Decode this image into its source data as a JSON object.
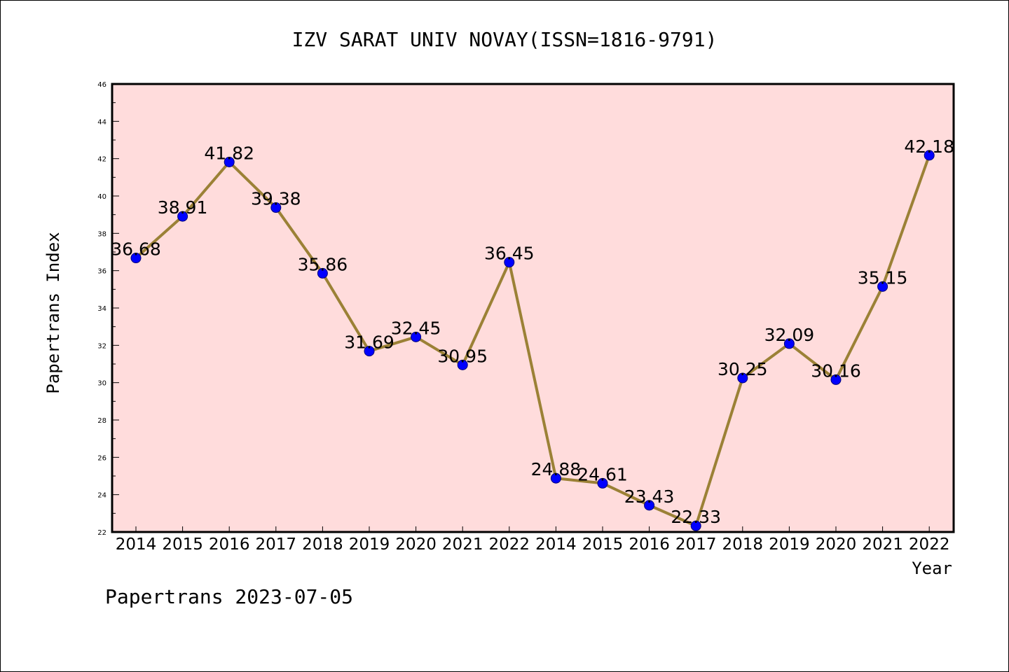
{
  "chart_data": {
    "type": "line",
    "title": "IZV SARAT UNIV NOVAY(ISSN=1816-9791)",
    "xlabel": "Year",
    "ylabel": "Papertrans Index",
    "footer": "Papertrans 2023-07-05",
    "categories": [
      "2014",
      "2015",
      "2016",
      "2017",
      "2018",
      "2019",
      "2020",
      "2021",
      "2022",
      "2014",
      "2015",
      "2016",
      "2017",
      "2018",
      "2019",
      "2020",
      "2021",
      "2022"
    ],
    "values": [
      36.68,
      38.91,
      41.82,
      39.38,
      35.86,
      31.69,
      32.45,
      30.95,
      36.45,
      24.88,
      24.61,
      23.43,
      22.33,
      30.25,
      32.09,
      30.16,
      35.15,
      42.18
    ],
    "labels": [
      "36.68",
      "38.91",
      "41.82",
      "39.38",
      "35.86",
      "31.69",
      "32.45",
      "30.95",
      "36.45",
      "24.88",
      "24.61",
      "23.43",
      "22.33",
      "30.25",
      "32.09",
      "30.16",
      "35.15",
      "42.18"
    ],
    "ylim": [
      22,
      46
    ],
    "yticks": [
      "22",
      "24",
      "26",
      "28",
      "30",
      "32",
      "34",
      "36",
      "38",
      "40",
      "42",
      "44",
      "46"
    ],
    "grid": false,
    "colors": {
      "plot_background": "#ffdcdc",
      "line": "#9b8136",
      "marker": "#0000ff",
      "marker_edge": "#00007a"
    }
  }
}
